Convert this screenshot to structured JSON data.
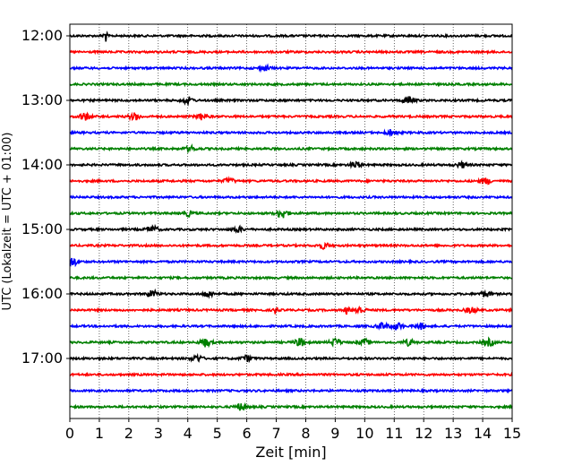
{
  "chart_data": {
    "type": "line",
    "title": "",
    "xlabel": "Zeit  [min]",
    "ylabel": "UTC (Lokalzeit = UTC + 01:00)",
    "xlim": [
      0,
      15
    ],
    "x_ticks": [
      "0",
      "1",
      "2",
      "3",
      "4",
      "5",
      "6",
      "7",
      "8",
      "9",
      "10",
      "11",
      "12",
      "13",
      "14",
      "15"
    ],
    "x_grid": true,
    "y_tick_labels": [
      "12:00",
      "13:00",
      "14:00",
      "15:00",
      "16:00",
      "17:00"
    ],
    "trace_colors": [
      "#000000",
      "#ff0000",
      "#0000ff",
      "#008000"
    ],
    "traces": [
      {
        "start": "12:00",
        "color": "#000000",
        "events": [
          [
            1.2,
            3.2
          ]
        ]
      },
      {
        "start": "12:15",
        "color": "#ff0000",
        "events": []
      },
      {
        "start": "12:30",
        "color": "#0000ff",
        "events": [
          [
            6.6,
            1.2
          ]
        ]
      },
      {
        "start": "12:45",
        "color": "#008000",
        "events": []
      },
      {
        "start": "13:00",
        "color": "#000000",
        "events": [
          [
            4.0,
            1.6
          ],
          [
            11.5,
            1.8
          ]
        ]
      },
      {
        "start": "13:15",
        "color": "#ff0000",
        "events": [
          [
            0.5,
            1.8
          ],
          [
            2.2,
            1.6
          ],
          [
            4.5,
            1.6
          ]
        ]
      },
      {
        "start": "13:30",
        "color": "#0000ff",
        "events": [
          [
            10.9,
            1.4
          ]
        ]
      },
      {
        "start": "13:45",
        "color": "#008000",
        "events": [
          [
            4.1,
            1.2
          ]
        ]
      },
      {
        "start": "14:00",
        "color": "#000000",
        "events": [
          [
            9.7,
            1.5
          ],
          [
            13.3,
            1.3
          ]
        ]
      },
      {
        "start": "14:15",
        "color": "#ff0000",
        "events": [
          [
            5.4,
            1.2
          ],
          [
            14.1,
            1.5
          ]
        ]
      },
      {
        "start": "14:30",
        "color": "#0000ff",
        "events": []
      },
      {
        "start": "14:45",
        "color": "#008000",
        "events": [
          [
            7.2,
            2.4
          ],
          [
            4.0,
            1.2
          ]
        ]
      },
      {
        "start": "15:00",
        "color": "#000000",
        "events": [
          [
            2.8,
            1.6
          ],
          [
            5.7,
            1.2
          ]
        ]
      },
      {
        "start": "15:15",
        "color": "#ff0000",
        "events": [
          [
            8.6,
            1.4
          ]
        ]
      },
      {
        "start": "15:30",
        "color": "#0000ff",
        "events": [
          [
            0.1,
            2.0
          ]
        ]
      },
      {
        "start": "15:45",
        "color": "#008000",
        "events": []
      },
      {
        "start": "16:00",
        "color": "#000000",
        "events": [
          [
            2.8,
            1.6
          ],
          [
            4.7,
            1.3
          ],
          [
            14.1,
            1.3
          ]
        ]
      },
      {
        "start": "16:15",
        "color": "#ff0000",
        "events": [
          [
            7.0,
            2.8
          ],
          [
            9.4,
            3.2
          ],
          [
            9.8,
            2.0
          ],
          [
            13.6,
            1.5
          ]
        ]
      },
      {
        "start": "16:30",
        "color": "#0000ff",
        "events": [
          [
            10.6,
            1.6
          ],
          [
            11.1,
            1.6
          ],
          [
            11.9,
            1.4
          ]
        ]
      },
      {
        "start": "16:45",
        "color": "#008000",
        "events": [
          [
            4.6,
            2.0
          ],
          [
            7.8,
            1.8
          ],
          [
            9.0,
            1.8
          ],
          [
            10.0,
            1.4
          ],
          [
            11.5,
            1.4
          ],
          [
            14.2,
            1.6
          ]
        ]
      },
      {
        "start": "17:00",
        "color": "#000000",
        "events": [
          [
            4.3,
            1.6
          ],
          [
            6.0,
            1.4
          ]
        ]
      },
      {
        "start": "17:15",
        "color": "#ff0000",
        "events": []
      },
      {
        "start": "17:30",
        "color": "#0000ff",
        "events": []
      },
      {
        "start": "17:45",
        "color": "#008000",
        "events": [
          [
            5.8,
            1.6
          ]
        ]
      }
    ]
  }
}
